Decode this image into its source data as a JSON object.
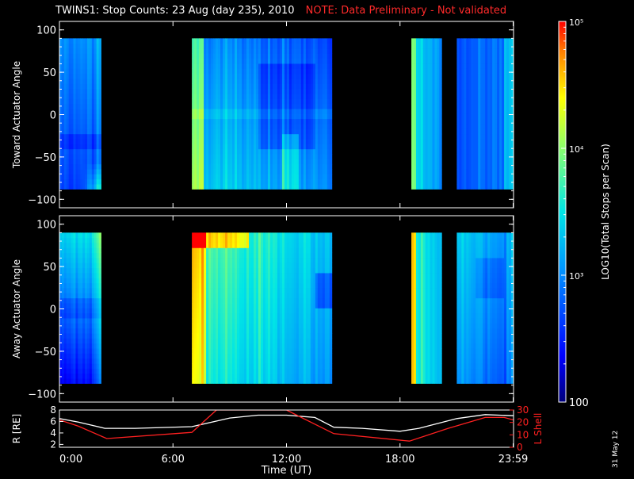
{
  "title": "TWINS1: Stop Counts: 23 Aug (day 235), 2010",
  "note": "NOTE: Data Preliminary - Not validated",
  "side_date": "31 May 12",
  "colorbar": {
    "label": "LOG10(Total Stops per Scan)",
    "ticks": [
      {
        "value": 100,
        "label": "100"
      },
      {
        "value": 1000,
        "label": "10³"
      },
      {
        "value": 10000,
        "label": "10⁴"
      },
      {
        "value": 100000,
        "label": "10⁵"
      }
    ],
    "range": [
      100,
      100000
    ],
    "scale": "log"
  },
  "chart_data": [
    {
      "type": "heatmap",
      "name": "toward",
      "ylabel": "Toward Actuator Angle",
      "xlim": [
        0,
        24
      ],
      "ylim": [
        -110,
        110
      ],
      "yticks": [
        100,
        50,
        0,
        -50,
        -100
      ],
      "coverage": [
        [
          0,
          2.2
        ],
        [
          7,
          14.4
        ],
        [
          18.6,
          20.2
        ],
        [
          21,
          24
        ]
      ],
      "actuator_range": [
        -88,
        90
      ],
      "description": "count levels per data block, log10 scale"
    },
    {
      "type": "heatmap",
      "name": "away",
      "ylabel": "Away Actuator Angle",
      "xlim": [
        0,
        24
      ],
      "ylim": [
        -110,
        110
      ],
      "yticks": [
        100,
        50,
        0,
        -50,
        -100
      ],
      "coverage": [
        [
          0,
          2.2
        ],
        [
          7,
          14.4
        ],
        [
          18.6,
          20.2
        ],
        [
          21,
          24
        ]
      ],
      "actuator_range": [
        -88,
        90
      ]
    },
    {
      "type": "line",
      "name": "orbit",
      "xlabel": "Time (UT)",
      "xlim": [
        0,
        24
      ],
      "xticks": [
        {
          "value": 0,
          "label": "0:00"
        },
        {
          "value": 6,
          "label": "6:00"
        },
        {
          "value": 12,
          "label": "12:00"
        },
        {
          "value": 18,
          "label": "18:00"
        },
        {
          "value": 23.98,
          "label": "23:59"
        }
      ],
      "left_axis": {
        "label": "R [RE]",
        "ylim": [
          1.5,
          8
        ],
        "ticks": [
          2,
          4,
          6,
          8
        ]
      },
      "right_axis": {
        "label": "L Shell",
        "ylim": [
          0,
          30
        ],
        "ticks": [
          0,
          10,
          20,
          30
        ]
      },
      "series": [
        {
          "name": "R [RE]",
          "color": "#ffffff",
          "axis": "left",
          "x": [
            0,
            1,
            2.4,
            4,
            7,
            9,
            10.5,
            12,
            13.5,
            14.5,
            16,
            18,
            19,
            21,
            22.5,
            24
          ],
          "y": [
            6.5,
            5.9,
            4.8,
            4.8,
            5.1,
            6.6,
            7.1,
            7.1,
            6.7,
            5.0,
            4.8,
            4.3,
            4.8,
            6.5,
            7.2,
            7.0
          ]
        },
        {
          "name": "L Shell",
          "color": "#ff2020",
          "axis": "right",
          "x": [
            0,
            1,
            2.5,
            7,
            8.3,
            12,
            14.5,
            18.5,
            20.5,
            22.5,
            23.5,
            24
          ],
          "y": [
            22,
            17,
            7,
            12,
            30,
            30,
            11,
            5,
            15,
            24,
            24,
            22
          ]
        }
      ]
    }
  ],
  "colors": {
    "background": "#000000",
    "axes": "#ffffff",
    "note": "#ff2a2a",
    "lshell": "#ff2020"
  }
}
